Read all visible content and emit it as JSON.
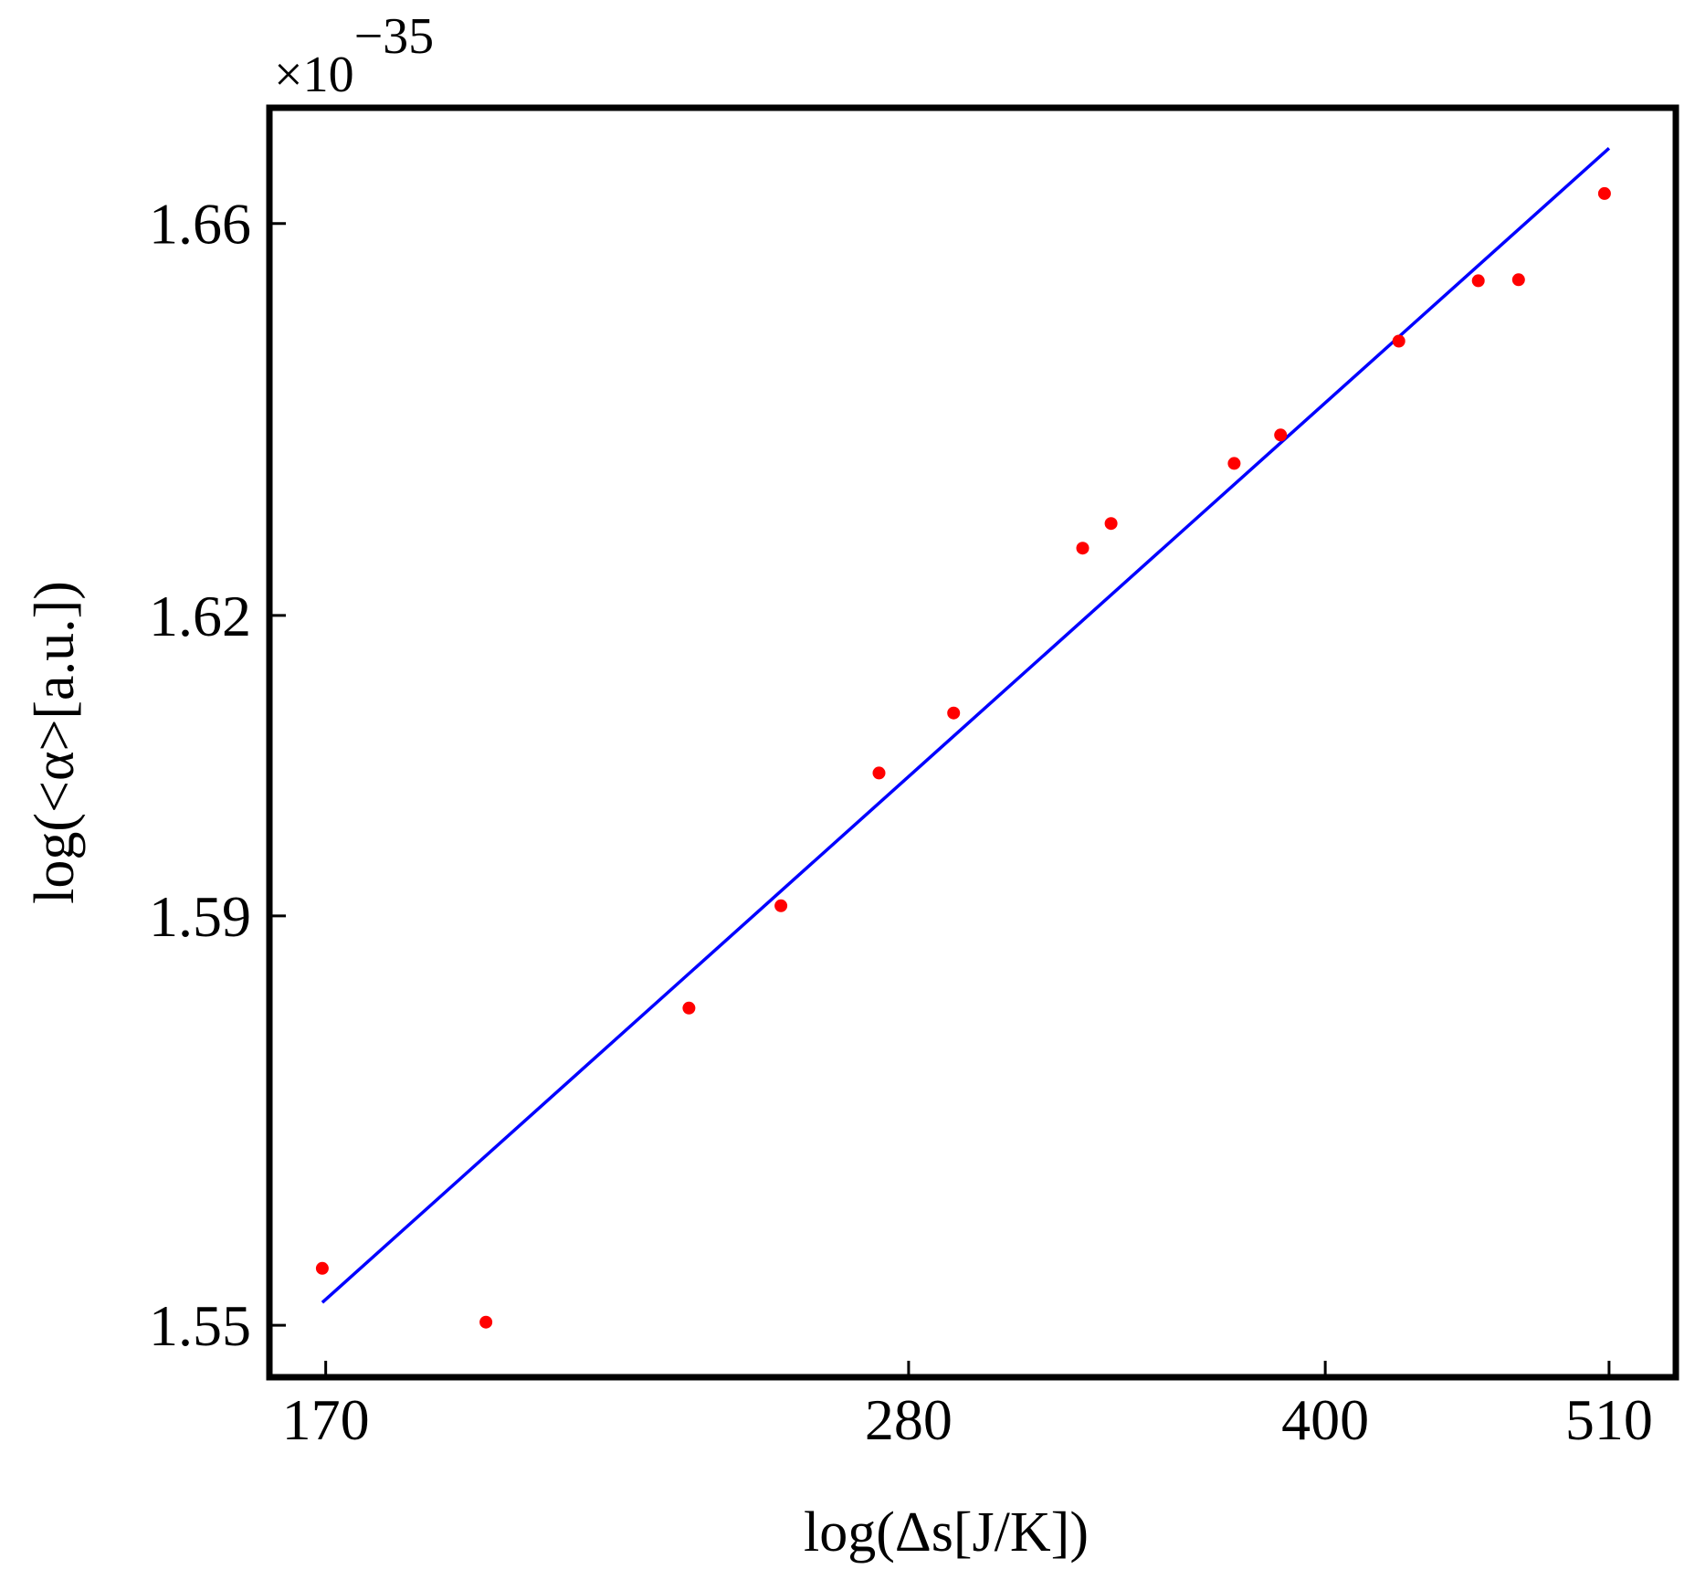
{
  "chart_data": {
    "type": "scatter",
    "title": "",
    "xlabel": "log(Δs[J/K])",
    "ylabel": "log(<α>[a.u.])",
    "y_multiplier": "×10",
    "y_exponent": "−35",
    "x_scale": "log",
    "y_scale": "log",
    "xlim": [
      162,
      540
    ],
    "ylim": [
      1.545,
      1.672
    ],
    "x_ticks": [
      170,
      280,
      400,
      510
    ],
    "x_tick_labels": [
      "170",
      "280",
      "400",
      "510"
    ],
    "y_ticks": [
      1.55,
      1.59,
      1.62,
      1.66
    ],
    "y_tick_labels": [
      "1.55",
      "1.59",
      "1.62",
      "1.66"
    ],
    "grid": false,
    "legend": "none",
    "series": [
      {
        "kind": "points",
        "color": "#ff0000",
        "x": [
          169.5,
          195,
          232,
          251,
          273,
          291,
          325,
          333,
          370,
          385,
          426,
          456,
          472,
          508
        ],
        "y": [
          1.5555,
          1.5503,
          1.5809,
          1.591,
          1.6042,
          1.6102,
          1.6268,
          1.6293,
          1.6354,
          1.6383,
          1.6479,
          1.6541,
          1.6542,
          1.6631
        ]
      },
      {
        "kind": "fit-line",
        "color": "#0000ff",
        "x": [
          169.5,
          510
        ],
        "y": [
          1.5522,
          1.6678
        ]
      }
    ]
  }
}
